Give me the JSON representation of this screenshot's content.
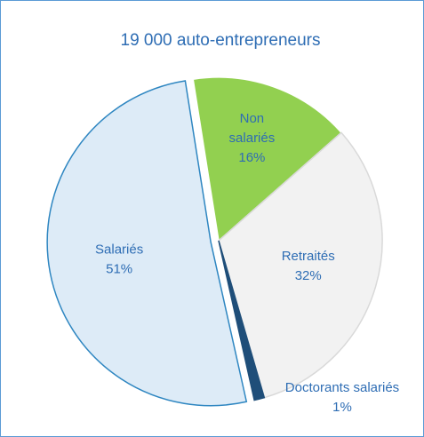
{
  "chart_data": {
    "type": "pie",
    "title": "19 000 auto-entrepreneurs",
    "categories": [
      "Non salariés",
      "Retraités",
      "Doctorants salariés",
      "Salariés"
    ],
    "values": [
      16,
      32,
      1,
      51
    ],
    "value_labels": [
      "16%",
      "32%",
      "1%",
      "51%"
    ],
    "colors": [
      "#92d050",
      "#f2f2f2",
      "#1f4e79",
      "#ddebf7"
    ]
  }
}
